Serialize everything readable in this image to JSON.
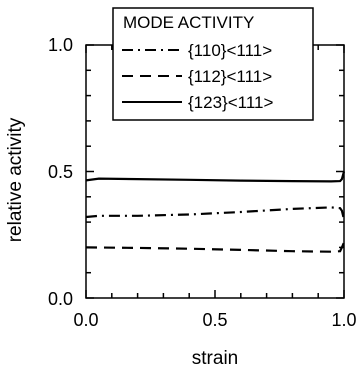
{
  "chart_data": {
    "type": "line",
    "title": "",
    "xlabel": "strain",
    "ylabel": "relative activity",
    "xlim": [
      0.0,
      1.0
    ],
    "ylim": [
      0.0,
      1.0
    ],
    "x_ticks": [
      "0.0",
      "0.5",
      "1.0"
    ],
    "y_ticks": [
      "0.0",
      "0.5",
      "1.0"
    ],
    "grid": false,
    "legend": {
      "title": "MODE ACTIVITY",
      "placement": "top-right"
    },
    "series": [
      {
        "name": "{110}<111>",
        "dash": "dash-dot",
        "points": [
          [
            0.0,
            0.32
          ],
          [
            0.05,
            0.325
          ],
          [
            0.2,
            0.325
          ],
          [
            0.4,
            0.33
          ],
          [
            0.6,
            0.34
          ],
          [
            0.8,
            0.352
          ],
          [
            0.95,
            0.358
          ],
          [
            0.985,
            0.355
          ],
          [
            0.992,
            0.345
          ],
          [
            1.0,
            0.31
          ]
        ]
      },
      {
        "name": "{112}<111>",
        "dash": "dashed",
        "points": [
          [
            0.0,
            0.2
          ],
          [
            0.2,
            0.198
          ],
          [
            0.4,
            0.195
          ],
          [
            0.6,
            0.19
          ],
          [
            0.8,
            0.185
          ],
          [
            0.95,
            0.183
          ],
          [
            0.985,
            0.185
          ],
          [
            0.992,
            0.2
          ],
          [
            1.0,
            0.22
          ]
        ]
      },
      {
        "name": "{123}<111>",
        "dash": "solid",
        "points": [
          [
            0.0,
            0.465
          ],
          [
            0.05,
            0.472
          ],
          [
            0.2,
            0.47
          ],
          [
            0.4,
            0.467
          ],
          [
            0.6,
            0.464
          ],
          [
            0.8,
            0.462
          ],
          [
            0.95,
            0.461
          ],
          [
            0.985,
            0.462
          ],
          [
            0.992,
            0.47
          ],
          [
            1.0,
            0.5
          ]
        ]
      }
    ]
  }
}
